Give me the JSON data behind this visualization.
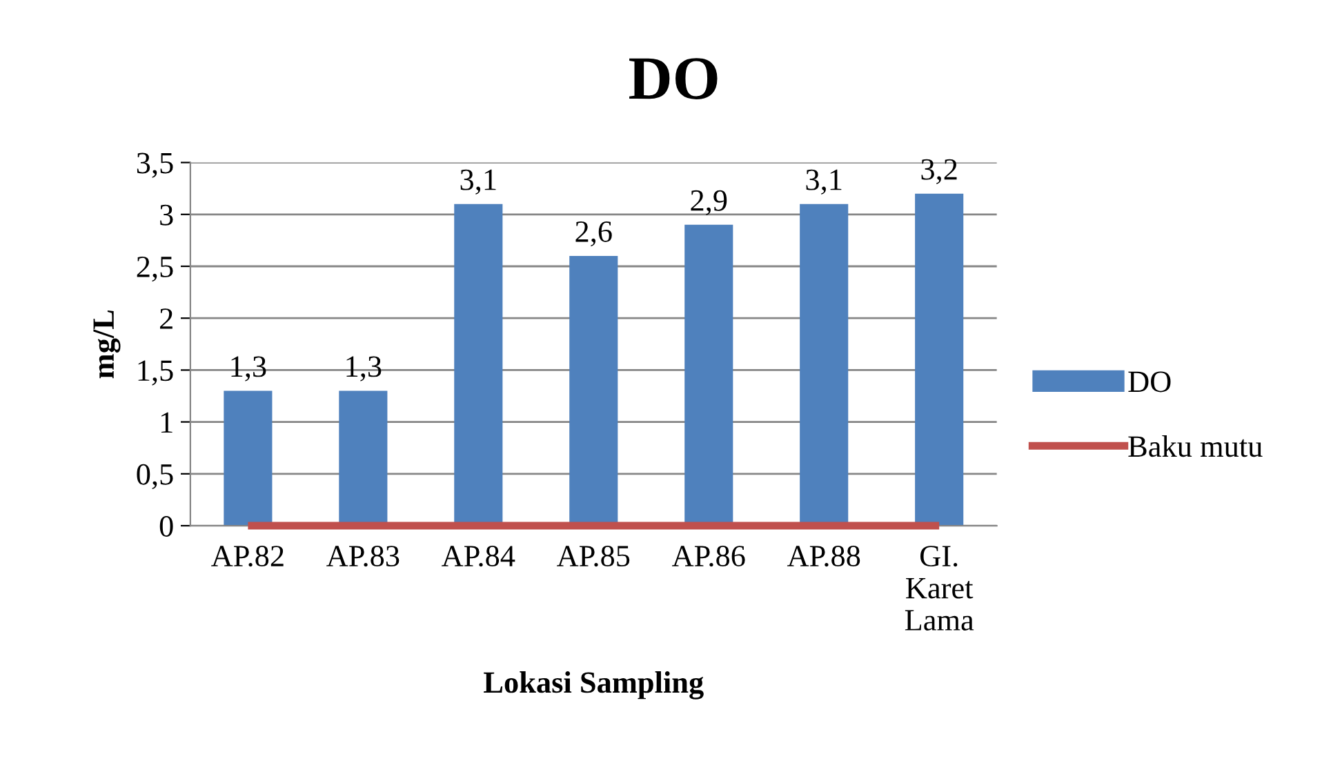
{
  "chart_data": {
    "type": "bar",
    "title": "DO",
    "xlabel": "Lokasi Sampling",
    "ylabel": "mg/L",
    "categories": [
      "AP.82",
      "AP.83",
      "AP.84",
      "AP.85",
      "AP.86",
      "AP.88",
      "GI.\nKaret\nLama"
    ],
    "series": [
      {
        "name": "DO",
        "color": "#4f81bd",
        "values": [
          1.3,
          1.3,
          3.1,
          2.6,
          2.9,
          3.1,
          3.2
        ],
        "value_labels": [
          "1,3",
          "1,3",
          "3,1",
          "2,6",
          "2,9",
          "3,1",
          "3,2"
        ]
      },
      {
        "name": "Baku mutu",
        "type": "line",
        "color": "#c0504d",
        "values": [
          0,
          0,
          0,
          0,
          0,
          0,
          0
        ]
      }
    ],
    "ylim": [
      0,
      3.5
    ],
    "yticks": [
      0,
      {
        "value": 0.5,
        "label": "0,5"
      },
      1,
      {
        "value": 1.5,
        "label": "1,5"
      },
      2,
      {
        "value": 2.5,
        "label": "2,5"
      },
      3,
      {
        "value": 3.5,
        "label": "3,5"
      }
    ],
    "grid": "y",
    "legend": "right",
    "marker": "none"
  }
}
